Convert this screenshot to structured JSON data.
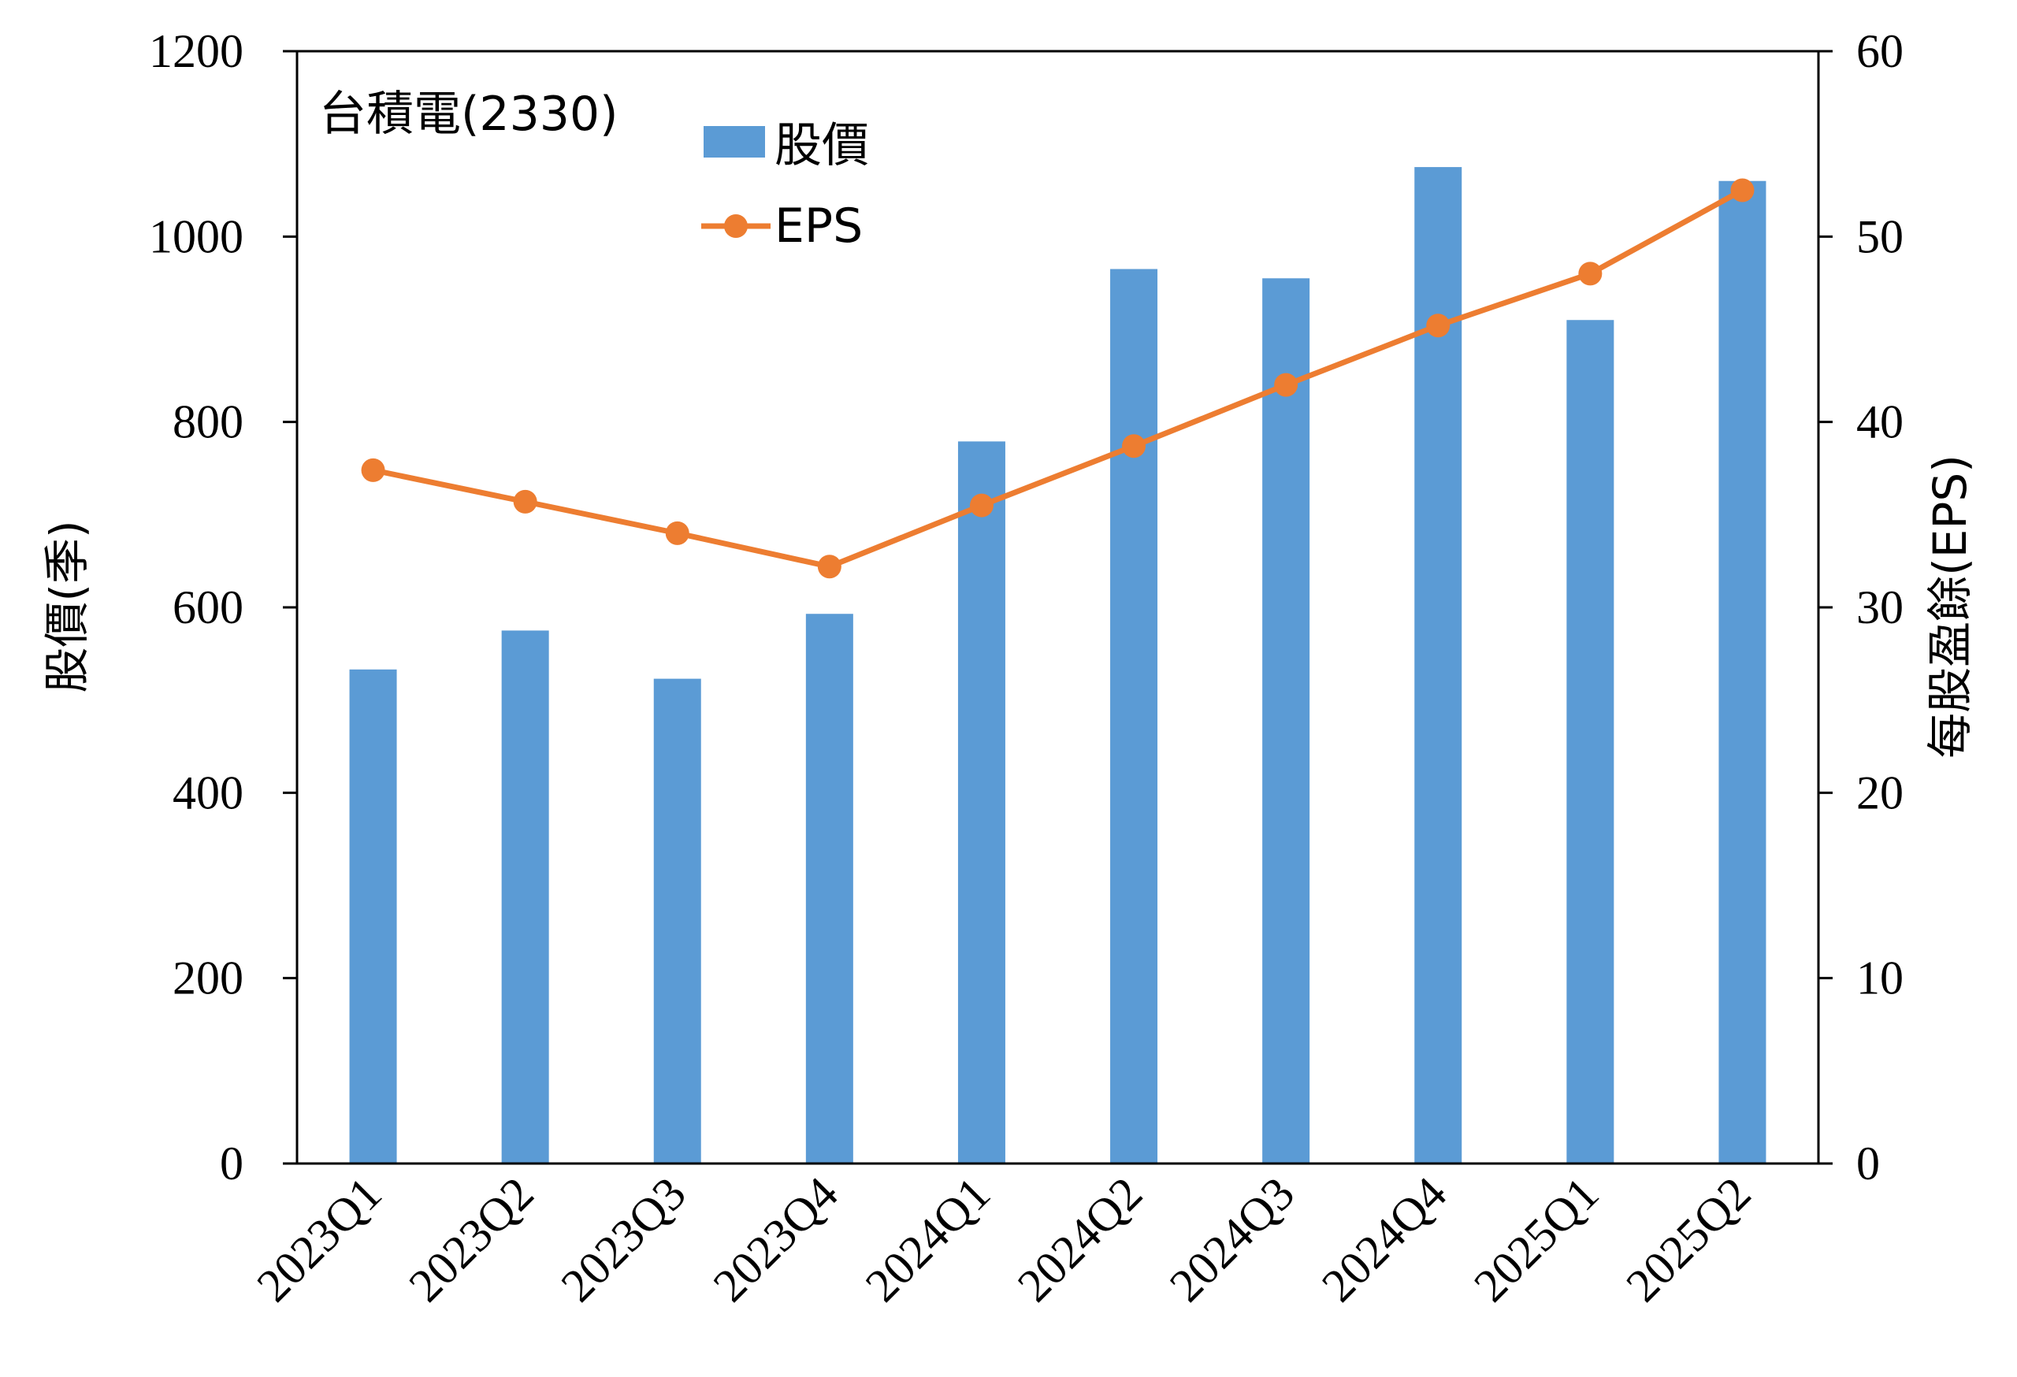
{
  "chart_data": {
    "type": "bar",
    "title": "台積電(2330)",
    "categories": [
      "2023Q1",
      "2023Q2",
      "2023Q3",
      "2023Q4",
      "2024Q1",
      "2024Q2",
      "2024Q3",
      "2024Q4",
      "2025Q1",
      "2025Q2"
    ],
    "series": [
      {
        "name": "股價",
        "type": "bar",
        "axis": "left",
        "color": "#5B9BD5",
        "values": [
          533,
          575,
          523,
          593,
          779,
          965,
          955,
          1075,
          910,
          1060
        ]
      },
      {
        "name": "EPS",
        "type": "line",
        "axis": "right",
        "color": "#ED7D31",
        "values": [
          37.4,
          35.7,
          34.0,
          32.2,
          35.5,
          38.7,
          42.0,
          45.2,
          48.0,
          52.5
        ]
      }
    ],
    "ylabel": "股價(季)",
    "ylabel_right": "每股盈餘(EPS)",
    "ylim": [
      0,
      1200
    ],
    "yticks": [
      0,
      200,
      400,
      600,
      800,
      1000,
      1200
    ],
    "ylim_right": [
      0,
      60
    ],
    "yticks_right": [
      0,
      10,
      20,
      30,
      40,
      50,
      60
    ],
    "grid": false,
    "legend": "top-left"
  }
}
